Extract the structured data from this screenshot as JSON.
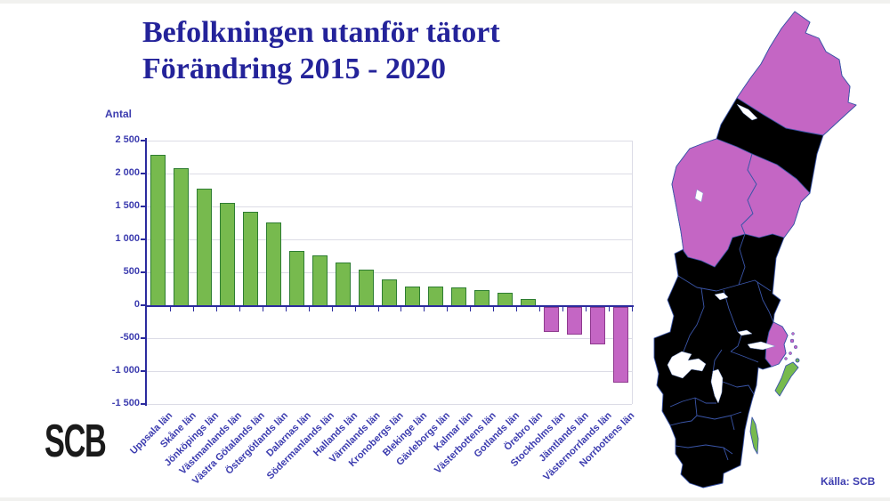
{
  "title": {
    "line1": "Befolkningen utanför tätort",
    "line2": "Förändring 2015 - 2020"
  },
  "logo": {
    "text": "SCB"
  },
  "source": {
    "text": "Källa: SCB"
  },
  "axis_title": "Antal",
  "colors": {
    "title_blue": "#24239a",
    "text_blue": "#3c3caf",
    "axis_blue": "#2b2b9e",
    "grid_gray": "#dcdce6",
    "bar_green": "#77ba4e",
    "bar_green_border": "#2e7d32",
    "bar_purple": "#c466c4",
    "bar_purple_border": "#8e3a8e",
    "map_border_blue": "#3a55a8",
    "lake_white": "#ffffff",
    "logo_black": "#1a1a1a",
    "frame_gray": "#f1f1ef"
  },
  "chart_data": {
    "type": "bar",
    "title": "Befolkningen utanför tätort — Förändring 2015 - 2020",
    "xlabel": "",
    "ylabel": "Antal",
    "ylim": [
      -1500,
      2500
    ],
    "grid": true,
    "legend": "none",
    "categories": [
      "Uppsala län",
      "Skåne län",
      "Jönköpings län",
      "Västmanlands län",
      "Västra Götalands län",
      "Östergötlands län",
      "Dalarnas län",
      "Södermanlands län",
      "Hallands län",
      "Värmlands län",
      "Kronobergs län",
      "Blekinge län",
      "Gävleborgs län",
      "Kalmar län",
      "Västerbottens län",
      "Gotlands län",
      "Örebro län",
      "Stockholms län",
      "Jämtlands län",
      "Västernorrlands län",
      "Norrbottens län"
    ],
    "values": [
      2280,
      2080,
      1770,
      1550,
      1420,
      1260,
      820,
      760,
      650,
      540,
      390,
      280,
      280,
      270,
      230,
      185,
      95,
      -380,
      -420,
      -570,
      -1150
    ],
    "yticks": [
      {
        "value": 2500,
        "label": "2 500"
      },
      {
        "value": 2000,
        "label": "2 000"
      },
      {
        "value": 1500,
        "label": "1 500"
      },
      {
        "value": 1000,
        "label": "1 000"
      },
      {
        "value": 500,
        "label": "500"
      },
      {
        "value": 0,
        "label": "0"
      },
      {
        "value": -500,
        "label": "-500"
      },
      {
        "value": -1000,
        "label": "-1 000"
      },
      {
        "value": -1500,
        "label": "-1 500"
      }
    ]
  },
  "map": {
    "region": "Sweden counties choropleth",
    "negative_counties": [
      "Stockholms län",
      "Jämtlands län",
      "Västernorrlands län",
      "Norrbottens län"
    ],
    "positive_meaning": "increase (green)",
    "negative_meaning": "decrease (purple)"
  }
}
